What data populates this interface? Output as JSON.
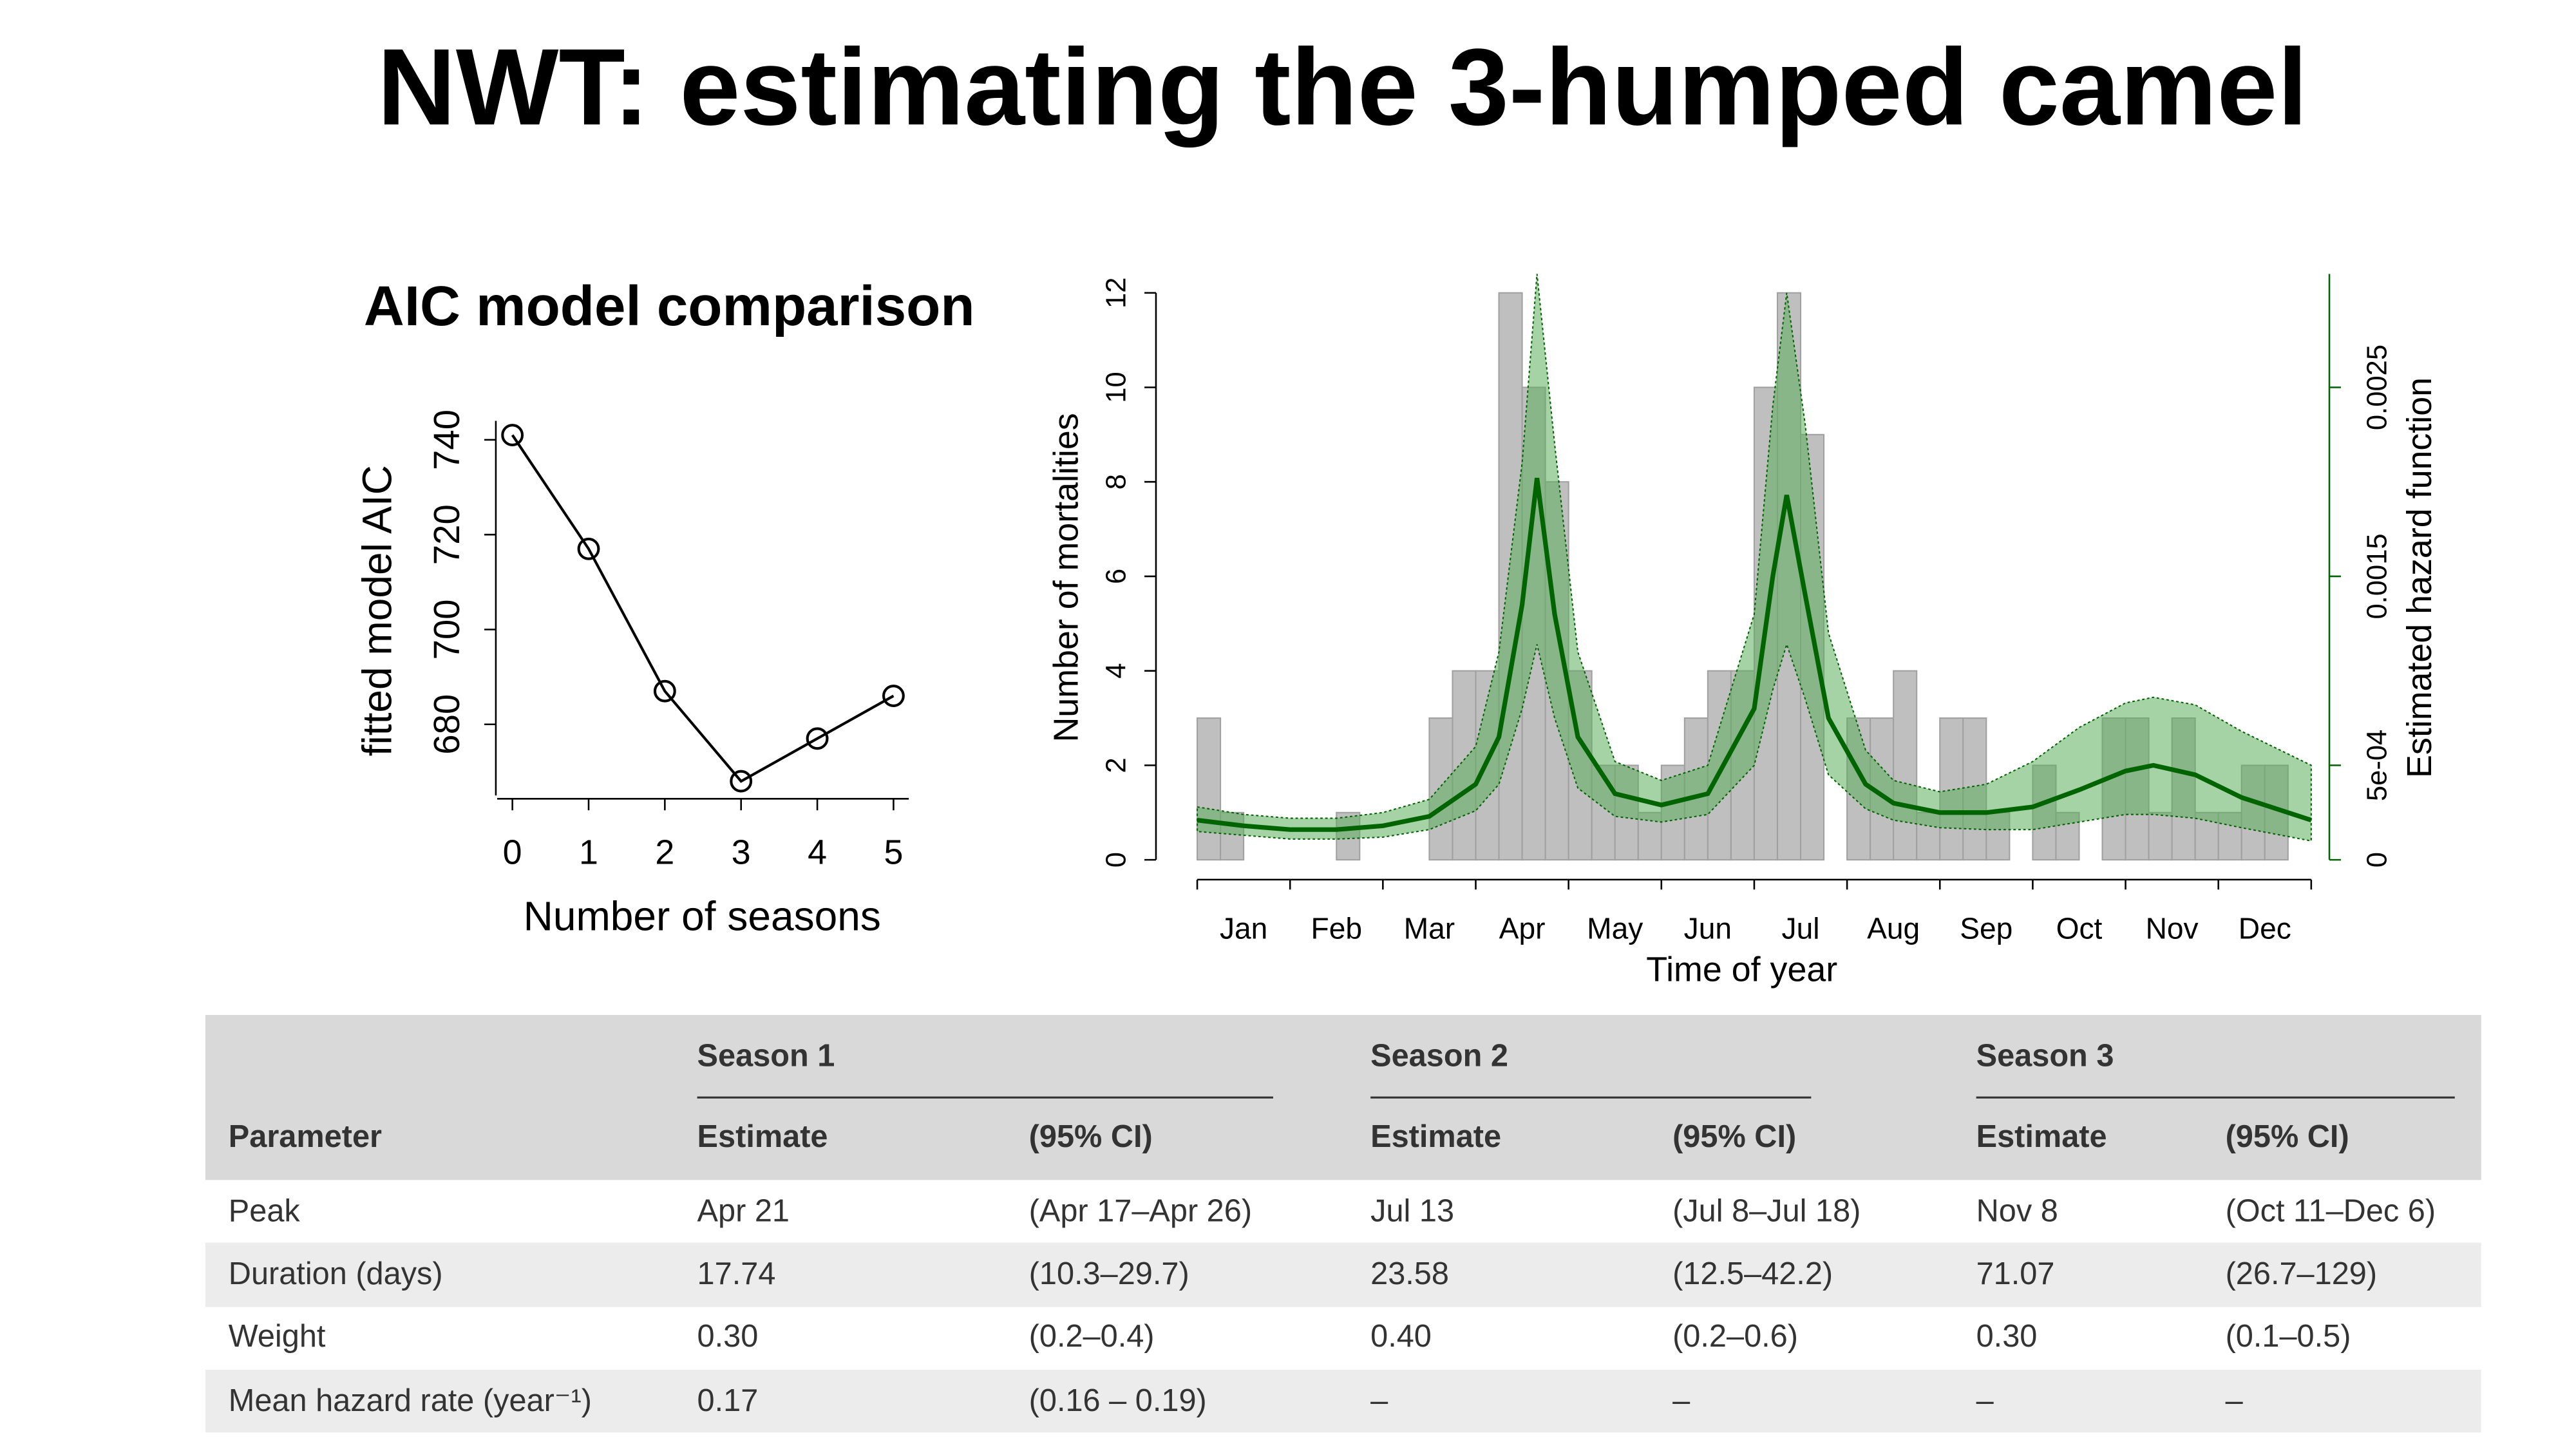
{
  "title": "NWT: estimating the 3-humped camel",
  "chart_data": [
    {
      "type": "line",
      "title": "AIC model comparison",
      "xlabel": "Number of seasons",
      "ylabel": "fitted model AIC",
      "x": [
        0,
        1,
        2,
        3,
        4,
        5
      ],
      "values": [
        741,
        717,
        687,
        668,
        677,
        686
      ],
      "color": "#000000",
      "xlim": [
        -0.2,
        5.2
      ],
      "xticks": [
        0,
        1,
        2,
        3,
        4,
        5
      ],
      "ylim": [
        665,
        744
      ],
      "yticks": [
        680,
        700,
        720,
        740
      ]
    },
    {
      "type": "histogram",
      "xlabel": "Time of year",
      "ylabel": "Number of mortalities",
      "y2label": "Estimated hazard function",
      "bins": [
        0,
        0.25,
        0.5,
        0.75,
        1,
        1.25,
        1.5,
        1.75,
        2,
        2.25,
        2.5,
        2.75,
        3,
        3.25,
        3.5,
        3.75,
        4,
        4.25,
        4.5,
        4.75,
        5,
        5.25,
        5.5,
        5.75,
        6,
        6.25,
        6.5,
        6.75,
        7,
        7.25,
        7.5,
        7.75,
        8,
        8.25,
        8.5,
        8.75,
        9,
        9.25,
        9.5,
        9.75,
        10,
        10.25,
        10.5,
        10.75,
        11,
        11.25,
        11.5,
        11.75,
        12
      ],
      "counts": [
        3,
        1,
        0,
        0,
        0,
        0,
        1,
        0,
        0,
        0,
        3,
        4,
        4,
        12,
        10,
        8,
        4,
        2,
        2,
        1,
        2,
        3,
        4,
        4,
        10,
        12,
        9,
        0,
        3,
        3,
        4,
        1,
        3,
        3,
        1,
        0,
        2,
        1,
        0,
        3,
        3,
        1,
        3,
        1,
        1,
        2,
        2,
        0
      ],
      "color": "#bfbfbf",
      "categories": [
        "Jan",
        "Feb",
        "Mar",
        "Apr",
        "May",
        "Jun",
        "Jul",
        "Aug",
        "Sep",
        "Oct",
        "Nov",
        "Dec"
      ],
      "xlim": [
        0,
        12
      ],
      "xticks": [
        0,
        1,
        2,
        3,
        4,
        5,
        6,
        7,
        8,
        9,
        10,
        11,
        12
      ],
      "ylim": [
        0,
        12.4
      ],
      "yticks": [
        0,
        2,
        4,
        6,
        8,
        10,
        12
      ],
      "y2lim": [
        0,
        0.0031
      ],
      "y2ticks": [
        0,
        {
          "value": 0.0005,
          "label": "5e-04"
        },
        0.0015,
        0.0025
      ],
      "hazard_x": [
        0,
        0.5,
        1,
        1.5,
        2,
        2.5,
        3,
        3.25,
        3.5,
        3.66,
        3.85,
        4.1,
        4.5,
        5,
        5.5,
        6,
        6.2,
        6.35,
        6.55,
        6.8,
        7.2,
        7.5,
        8,
        8.5,
        9,
        9.5,
        10,
        10.3,
        10.75,
        11.25,
        12
      ],
      "hazard": [
        0.00021,
        0.00018,
        0.00016,
        0.00016,
        0.00018,
        0.00023,
        0.0004,
        0.00065,
        0.00135,
        0.00202,
        0.0013,
        0.00065,
        0.00035,
        0.00029,
        0.00035,
        0.0008,
        0.0015,
        0.00193,
        0.0014,
        0.00075,
        0.0004,
        0.0003,
        0.00025,
        0.00025,
        0.00028,
        0.00037,
        0.00047,
        0.0005,
        0.00045,
        0.00033,
        0.00021
      ],
      "hazard_upper": [
        0.00028,
        0.00024,
        0.00022,
        0.00022,
        0.00025,
        0.00032,
        0.0006,
        0.0011,
        0.0021,
        0.0031,
        0.0022,
        0.0011,
        0.00052,
        0.00042,
        0.0005,
        0.0013,
        0.0024,
        0.003,
        0.0023,
        0.0012,
        0.00058,
        0.00042,
        0.00036,
        0.0004,
        0.00052,
        0.0007,
        0.00083,
        0.00086,
        0.00082,
        0.00068,
        0.0005
      ],
      "hazard_lower": [
        0.00015,
        0.00013,
        0.00011,
        0.00011,
        0.00012,
        0.00016,
        0.00026,
        0.0004,
        0.0008,
        0.00114,
        0.00075,
        0.00038,
        0.00023,
        0.0002,
        0.00024,
        0.0005,
        0.0009,
        0.00114,
        0.00085,
        0.00045,
        0.00027,
        0.00021,
        0.00017,
        0.00016,
        0.00016,
        0.0002,
        0.00024,
        0.00024,
        0.00022,
        0.00017,
        0.0001
      ],
      "hazard_color": "#006400",
      "band_color": "#5cae5c"
    }
  ],
  "table": {
    "groups": [
      "Season 1",
      "Season 2",
      "Season 3"
    ],
    "header": [
      "Parameter",
      "Estimate",
      "(95% CI)",
      "Estimate",
      "(95% CI)",
      "Estimate",
      "(95% CI)"
    ],
    "rows": [
      [
        "Peak",
        "Apr 21",
        "(Apr 17–Apr 26)",
        "Jul 13",
        "(Jul 8–Jul 18)",
        "Nov 8",
        "(Oct 11–Dec 6)"
      ],
      [
        "Duration (days)",
        "17.74",
        "(10.3–29.7)",
        "23.58",
        "(12.5–42.2)",
        "71.07",
        "(26.7–129)"
      ],
      [
        "Weight",
        "0.30",
        "(0.2–0.4)",
        "0.40",
        "(0.2–0.6)",
        "0.30",
        "(0.1–0.5)"
      ],
      [
        "Mean hazard rate (year⁻¹)",
        "0.17",
        "(0.16 – 0.19)",
        "–",
        "–",
        "–",
        "–"
      ]
    ]
  }
}
